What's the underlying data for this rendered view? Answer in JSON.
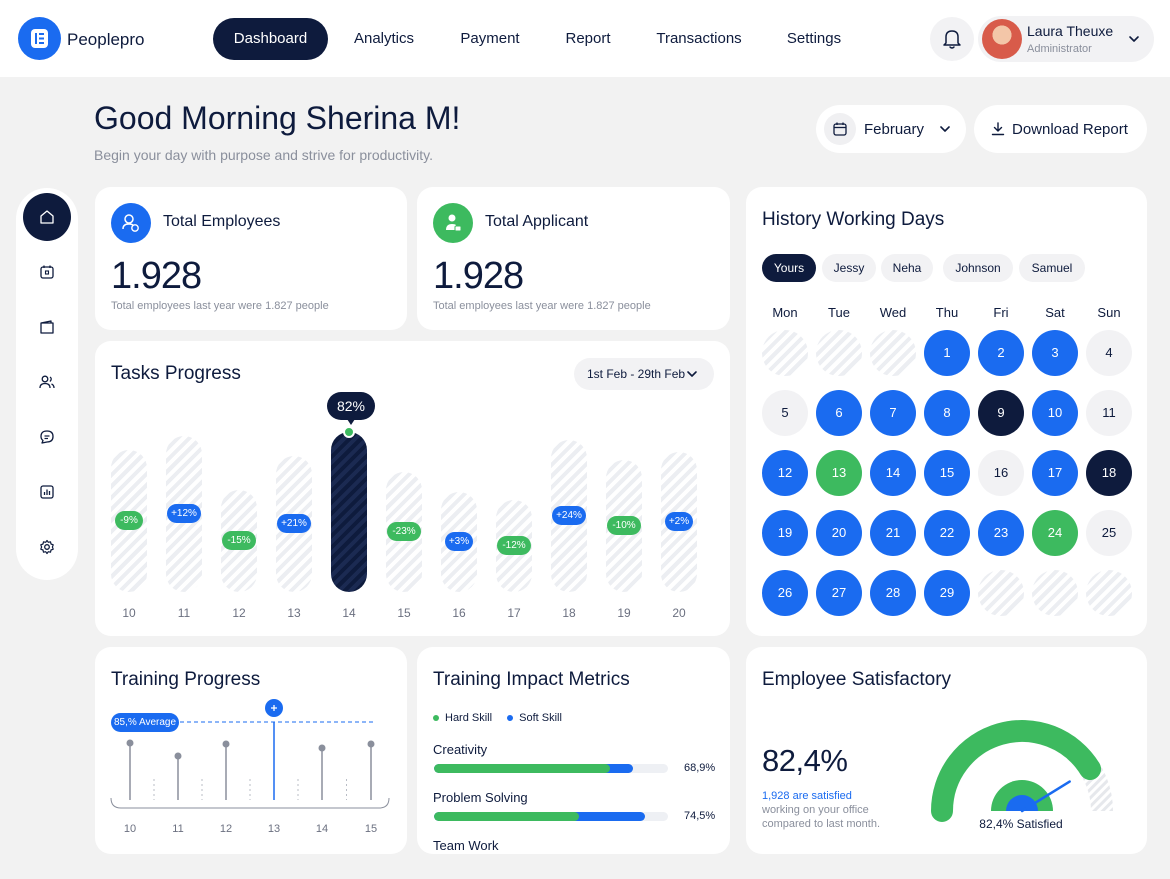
{
  "app": {
    "name": "Peoplepro"
  },
  "nav": {
    "items": [
      {
        "label": "Dashboard",
        "active": true
      },
      {
        "label": "Analytics",
        "active": false
      },
      {
        "label": "Payment",
        "active": false
      },
      {
        "label": "Report",
        "active": false
      },
      {
        "label": "Transactions",
        "active": false
      },
      {
        "label": "Settings",
        "active": false
      }
    ]
  },
  "user": {
    "name": "Laura Theuxe",
    "role": "Administrator"
  },
  "header": {
    "greeting": "Good Morning Sherina M!",
    "subtitle": "Begin your day with purpose and strive for productivity.",
    "month": "February",
    "download_label": "Download Report"
  },
  "sidebar": {
    "icons": [
      "home-icon",
      "calendar-icon",
      "wallet-icon",
      "users-icon",
      "chat-icon",
      "chart-icon",
      "gear-icon"
    ],
    "active_index": 0
  },
  "stats": {
    "employees": {
      "title": "Total Employees",
      "value": "1.928",
      "sub": "Total employees last year were 1.827 people"
    },
    "applicants": {
      "title": "Total Applicant",
      "value": "1.928",
      "sub": "Total employees last year were 1.827 people"
    }
  },
  "tasks": {
    "title": "Tasks Progress",
    "range": "1st Feb - 29th Feb",
    "highlight_label": "82%"
  },
  "history": {
    "title": "History Working Days",
    "people": [
      "Yours",
      "Jessy",
      "Neha",
      "Johnson",
      "Samuel"
    ],
    "active_person": 0,
    "weekdays": [
      "Mon",
      "Tue",
      "Wed",
      "Thu",
      "Fri",
      "Sat",
      "Sun"
    ],
    "leading_blanks": 3,
    "days": [
      {
        "d": "1",
        "s": "blue"
      },
      {
        "d": "2",
        "s": "blue"
      },
      {
        "d": "3",
        "s": "blue"
      },
      {
        "d": "4",
        "s": "light"
      },
      {
        "d": "5",
        "s": "light"
      },
      {
        "d": "6",
        "s": "blue"
      },
      {
        "d": "7",
        "s": "blue"
      },
      {
        "d": "8",
        "s": "blue"
      },
      {
        "d": "9",
        "s": "dark"
      },
      {
        "d": "10",
        "s": "blue"
      },
      {
        "d": "11",
        "s": "light"
      },
      {
        "d": "12",
        "s": "blue"
      },
      {
        "d": "13",
        "s": "green"
      },
      {
        "d": "14",
        "s": "blue"
      },
      {
        "d": "15",
        "s": "blue"
      },
      {
        "d": "16",
        "s": "light"
      },
      {
        "d": "17",
        "s": "blue"
      },
      {
        "d": "18",
        "s": "dark"
      },
      {
        "d": "19",
        "s": "blue"
      },
      {
        "d": "20",
        "s": "blue"
      },
      {
        "d": "21",
        "s": "blue"
      },
      {
        "d": "22",
        "s": "blue"
      },
      {
        "d": "23",
        "s": "blue"
      },
      {
        "d": "24",
        "s": "green"
      },
      {
        "d": "25",
        "s": "light"
      },
      {
        "d": "26",
        "s": "blue"
      },
      {
        "d": "27",
        "s": "blue"
      },
      {
        "d": "28",
        "s": "blue"
      },
      {
        "d": "29",
        "s": "blue"
      }
    ]
  },
  "training_progress": {
    "title": "Training Progress",
    "average_label": "85,% Average"
  },
  "impact": {
    "title": "Training Impact Metrics",
    "legend": [
      {
        "label": "Hard Skill",
        "color": "#3dba5f"
      },
      {
        "label": "Soft Skill",
        "color": "#1a6bf0"
      }
    ],
    "metrics": [
      {
        "label": "Creativity",
        "pct": "68,9%",
        "hard": 0.75,
        "soft": 0.85
      },
      {
        "label": "Problem Solving",
        "pct": "74,5%",
        "hard": 0.62,
        "soft": 0.9
      },
      {
        "label": "Team Work",
        "pct": "",
        "hard": 0,
        "soft": 0
      }
    ]
  },
  "satisfaction": {
    "title": "Employee Satisfactory",
    "value": "82,4%",
    "highlight": "1,928 are satisfied",
    "line1": "working on your office",
    "line2": "compared to last month.",
    "gauge_label": "82,4% Satisfied",
    "gauge_value": 0.824
  },
  "chart_data": [
    {
      "type": "bar",
      "title": "Tasks Progress",
      "categories": [
        "10",
        "11",
        "12",
        "13",
        "14",
        "15",
        "16",
        "17",
        "18",
        "19",
        "20"
      ],
      "series": [
        {
          "values": [
            -9,
            12,
            -15,
            21,
            82,
            -23,
            3,
            -12,
            24,
            -10,
            2
          ]
        }
      ],
      "highlight_category": "14"
    },
    {
      "type": "scatter",
      "title": "Training Progress",
      "categories": [
        "10",
        "11",
        "12",
        "13",
        "14",
        "15"
      ],
      "average": 85,
      "highlight_category": "13"
    }
  ],
  "colors": {
    "navy": "#0e1b3d",
    "blue": "#1a6bf0",
    "green": "#3dba5f",
    "bg": "#f2f2f2"
  }
}
